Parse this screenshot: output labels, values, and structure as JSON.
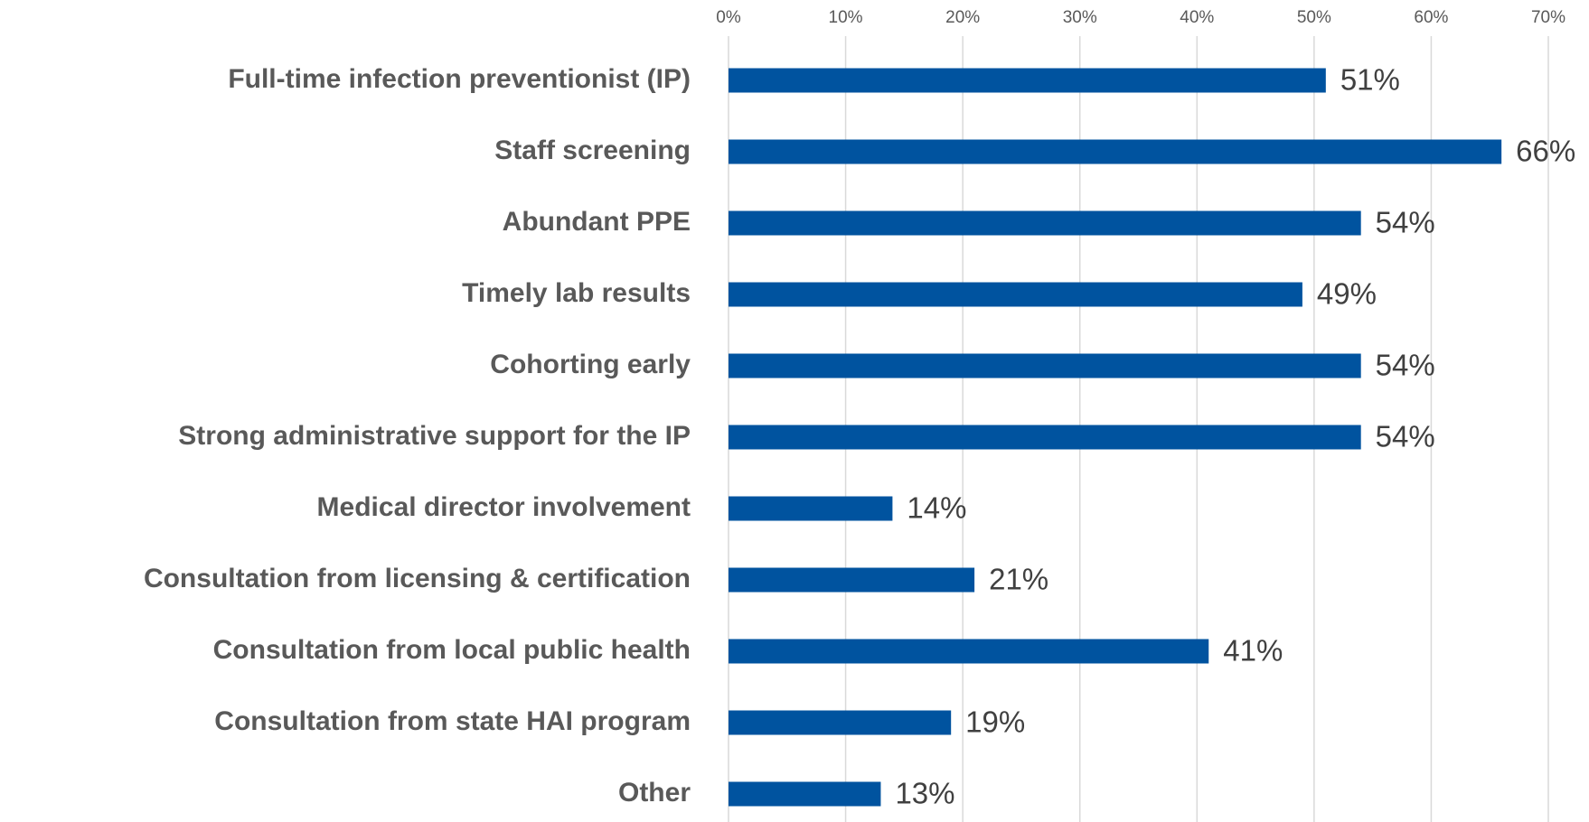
{
  "chart_data": {
    "type": "bar",
    "orientation": "horizontal",
    "categories": [
      "Full-time infection preventionist (IP)",
      "Staff screening",
      "Abundant PPE",
      "Timely lab results",
      "Cohorting early",
      "Strong administrative support for the IP",
      "Medical director involvement",
      "Consultation from licensing & certification",
      "Consultation from local public health",
      "Consultation from state HAI program",
      "Other"
    ],
    "values": [
      51,
      66,
      54,
      49,
      54,
      54,
      14,
      21,
      41,
      19,
      13
    ],
    "value_labels": [
      "51%",
      "66%",
      "54%",
      "49%",
      "54%",
      "54%",
      "14%",
      "21%",
      "41%",
      "19%",
      "13%"
    ],
    "color": "#00539f",
    "xlim": [
      0,
      70
    ],
    "xticks": [
      {
        "value": 0,
        "label": "0%"
      },
      {
        "value": 10,
        "label": "10%"
      },
      {
        "value": 20,
        "label": "20%"
      },
      {
        "value": 30,
        "label": "30%"
      },
      {
        "value": 40,
        "label": "40%"
      },
      {
        "value": 50,
        "label": "50%"
      },
      {
        "value": 60,
        "label": "60%"
      },
      {
        "value": 70,
        "label": "70%"
      }
    ],
    "grid": true
  }
}
